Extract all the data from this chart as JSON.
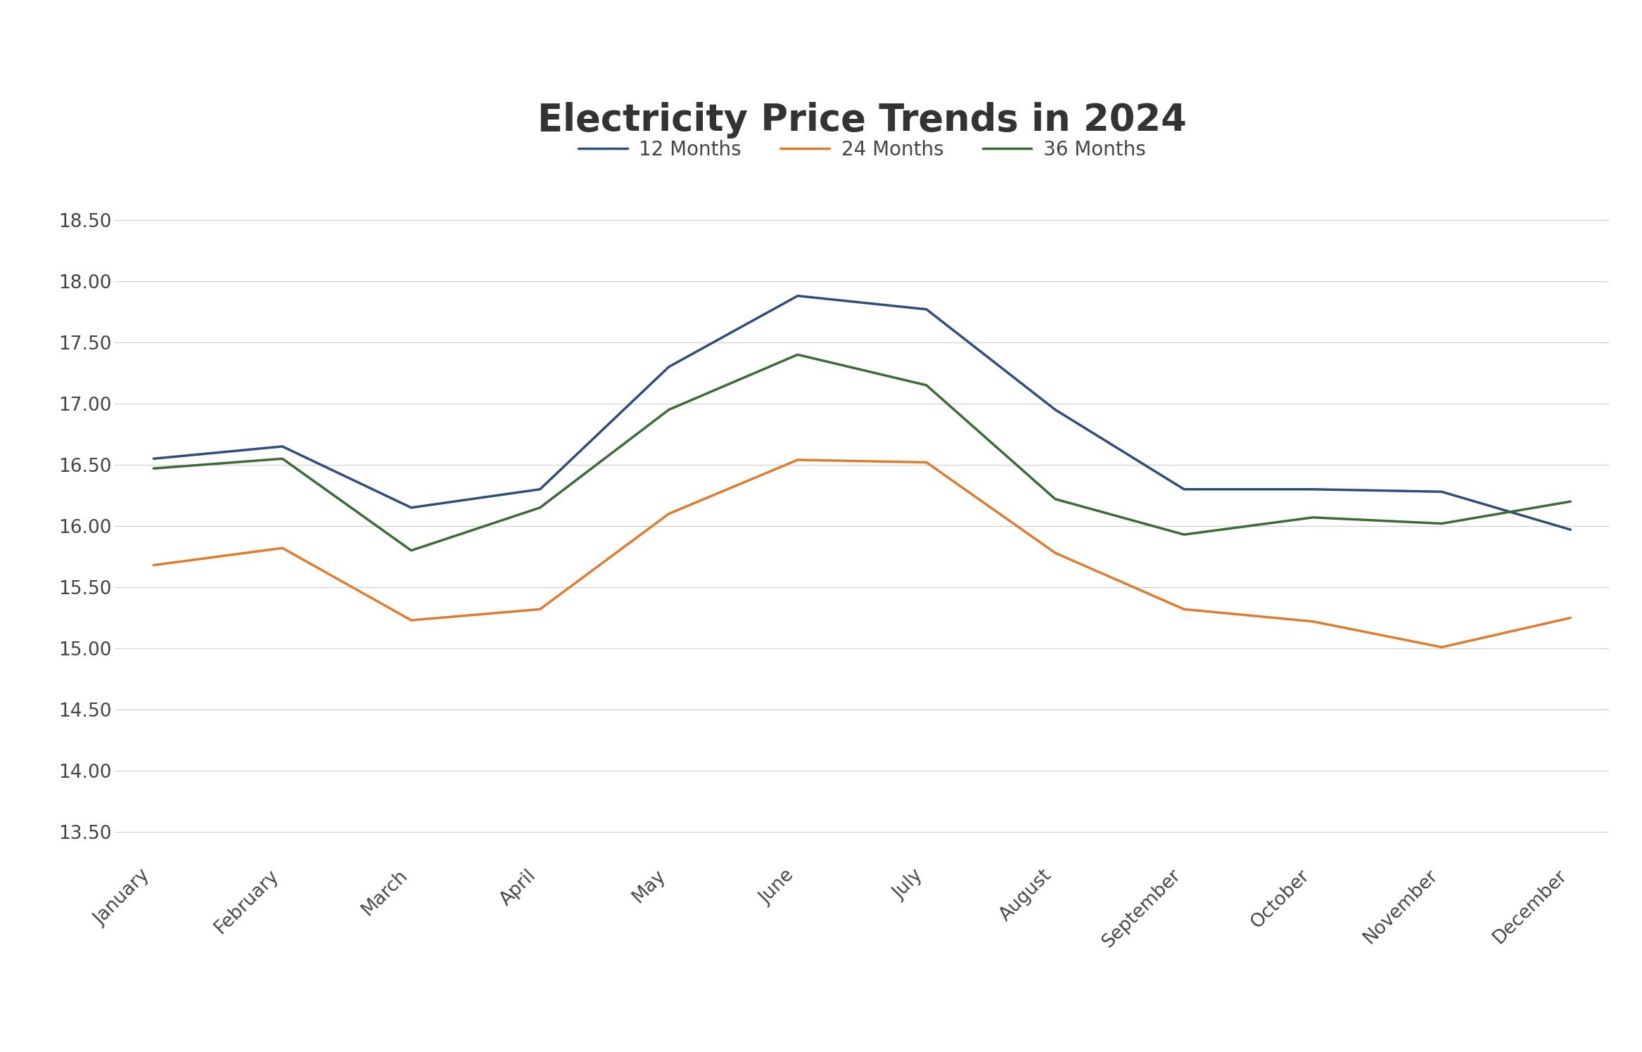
{
  "title": "Electricity Price Trends in 2024",
  "months": [
    "January",
    "February",
    "March",
    "April",
    "May",
    "June",
    "July",
    "August",
    "September",
    "October",
    "November",
    "December"
  ],
  "series": {
    "12 Months": {
      "values": [
        16.55,
        16.65,
        16.15,
        16.3,
        17.3,
        17.88,
        17.77,
        16.95,
        16.3,
        16.3,
        16.28,
        15.97
      ],
      "color": "#2e4d7b",
      "linewidth": 2.5
    },
    "24 Months": {
      "values": [
        15.68,
        15.82,
        15.23,
        15.32,
        16.1,
        16.54,
        16.52,
        15.78,
        15.32,
        15.22,
        15.01,
        15.25
      ],
      "color": "#e07b2e",
      "linewidth": 2.5
    },
    "36 Months": {
      "values": [
        16.47,
        16.55,
        15.8,
        16.15,
        16.95,
        17.4,
        17.15,
        16.22,
        15.93,
        16.07,
        16.02,
        16.2
      ],
      "color": "#3a6b35",
      "linewidth": 2.5
    }
  },
  "ylim": [
    13.25,
    18.75
  ],
  "yticks": [
    13.5,
    14.0,
    14.5,
    15.0,
    15.5,
    16.0,
    16.5,
    17.0,
    17.5,
    18.0,
    18.5
  ],
  "background_color": "#ffffff",
  "grid_color": "#cccccc",
  "title_fontsize": 38,
  "legend_fontsize": 20,
  "tick_fontsize": 19
}
